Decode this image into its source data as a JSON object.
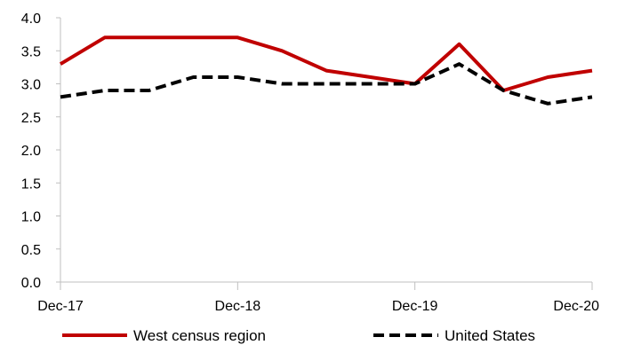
{
  "chart_data": {
    "type": "line",
    "x": [
      "Dec-17",
      "Mar-18",
      "Jun-18",
      "Sep-18",
      "Dec-18",
      "Mar-19",
      "Jun-19",
      "Sep-19",
      "Dec-19",
      "Mar-20",
      "Jun-20",
      "Sep-20",
      "Dec-20"
    ],
    "x_tick_labels": [
      "Dec-17",
      "Dec-18",
      "Dec-19",
      "Dec-20"
    ],
    "y_tick_labels": [
      "0.0",
      "0.5",
      "1.0",
      "1.5",
      "2.0",
      "2.5",
      "3.0",
      "3.5",
      "4.0"
    ],
    "ylim": [
      0,
      4.0
    ],
    "grid": false,
    "legend_position": "bottom",
    "series": [
      {
        "name": "West census region",
        "color": "#c00000",
        "style": "solid",
        "values": [
          3.3,
          3.7,
          3.7,
          3.7,
          3.7,
          3.5,
          3.2,
          3.1,
          3.0,
          3.6,
          2.9,
          3.1,
          3.2
        ]
      },
      {
        "name": "United States",
        "color": "#000000",
        "style": "dashed",
        "values": [
          2.8,
          2.9,
          2.9,
          3.1,
          3.1,
          3.0,
          3.0,
          3.0,
          3.0,
          3.3,
          2.9,
          2.7,
          2.8
        ]
      }
    ]
  }
}
